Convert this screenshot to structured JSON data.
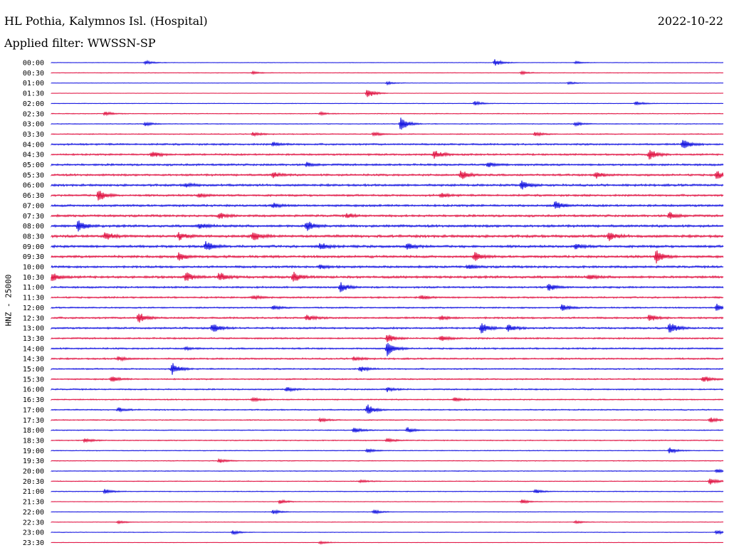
{
  "header": {
    "station": "HL Pothia, Kalymnos Isl. (Hospital)",
    "date": "2022-10-22",
    "filter": "Applied filter: WWSSN-SP"
  },
  "chart_data": {
    "type": "line",
    "title": "HL Pothia, Kalymnos Isl. (Hospital)",
    "ylabel": "HNZ - 25000",
    "colors": {
      "even_rows": "#1010e0",
      "odd_rows": "#e01040"
    },
    "rows": [
      {
        "label": "00:00",
        "noise": 0.25,
        "events": [
          [
            0.14,
            3
          ],
          [
            0.66,
            5
          ],
          [
            0.78,
            2
          ]
        ]
      },
      {
        "label": "00:30",
        "noise": 0.3,
        "events": [
          [
            0.3,
            2
          ],
          [
            0.7,
            2
          ]
        ]
      },
      {
        "label": "01:00",
        "noise": 0.2,
        "events": [
          [
            0.5,
            2
          ],
          [
            0.77,
            2
          ]
        ]
      },
      {
        "label": "01:30",
        "noise": 0.15,
        "events": [
          [
            0.47,
            8
          ]
        ]
      },
      {
        "label": "02:00",
        "noise": 0.3,
        "events": [
          [
            0.63,
            3
          ],
          [
            0.87,
            3
          ]
        ]
      },
      {
        "label": "02:30",
        "noise": 0.4,
        "events": [
          [
            0.08,
            3
          ],
          [
            0.4,
            2
          ]
        ]
      },
      {
        "label": "03:00",
        "noise": 0.4,
        "events": [
          [
            0.14,
            3
          ],
          [
            0.52,
            10
          ],
          [
            0.78,
            3
          ]
        ]
      },
      {
        "label": "03:30",
        "noise": 0.5,
        "events": [
          [
            0.3,
            3
          ],
          [
            0.48,
            3
          ],
          [
            0.72,
            3
          ]
        ]
      },
      {
        "label": "04:00",
        "noise": 0.9,
        "events": [
          [
            0.33,
            3
          ],
          [
            0.94,
            7
          ]
        ]
      },
      {
        "label": "04:30",
        "noise": 0.9,
        "events": [
          [
            0.15,
            5
          ],
          [
            0.57,
            6
          ],
          [
            0.89,
            7
          ]
        ]
      },
      {
        "label": "05:00",
        "noise": 1.0,
        "events": [
          [
            0.38,
            3
          ],
          [
            0.65,
            3
          ]
        ]
      },
      {
        "label": "05:30",
        "noise": 1.0,
        "events": [
          [
            0.33,
            4
          ],
          [
            0.61,
            7
          ],
          [
            0.81,
            5
          ],
          [
            0.99,
            6
          ]
        ]
      },
      {
        "label": "06:00",
        "noise": 1.1,
        "events": [
          [
            0.7,
            6
          ],
          [
            0.2,
            3
          ]
        ]
      },
      {
        "label": "06:30",
        "noise": 1.0,
        "events": [
          [
            0.07,
            8
          ],
          [
            0.22,
            3
          ],
          [
            0.58,
            3
          ]
        ]
      },
      {
        "label": "07:00",
        "noise": 1.1,
        "events": [
          [
            0.75,
            6
          ],
          [
            0.33,
            3
          ]
        ]
      },
      {
        "label": "07:30",
        "noise": 1.1,
        "events": [
          [
            0.25,
            4
          ],
          [
            0.44,
            3
          ],
          [
            0.92,
            5
          ]
        ]
      },
      {
        "label": "08:00",
        "noise": 1.2,
        "events": [
          [
            0.04,
            8
          ],
          [
            0.22,
            4
          ],
          [
            0.38,
            8
          ]
        ]
      },
      {
        "label": "08:30",
        "noise": 1.3,
        "events": [
          [
            0.08,
            6
          ],
          [
            0.19,
            5
          ],
          [
            0.3,
            6
          ],
          [
            0.83,
            6
          ]
        ]
      },
      {
        "label": "09:00",
        "noise": 1.2,
        "events": [
          [
            0.23,
            7
          ],
          [
            0.4,
            5
          ],
          [
            0.53,
            5
          ],
          [
            0.78,
            4
          ]
        ]
      },
      {
        "label": "09:30",
        "noise": 1.2,
        "events": [
          [
            0.19,
            6
          ],
          [
            0.63,
            6
          ],
          [
            0.9,
            9
          ]
        ]
      },
      {
        "label": "10:00",
        "noise": 1.1,
        "events": [
          [
            0.4,
            3
          ],
          [
            0.62,
            3
          ]
        ]
      },
      {
        "label": "10:30",
        "noise": 1.2,
        "events": [
          [
            0.0,
            7
          ],
          [
            0.2,
            7
          ],
          [
            0.25,
            6
          ],
          [
            0.36,
            7
          ],
          [
            0.8,
            3
          ]
        ]
      },
      {
        "label": "11:00",
        "noise": 0.9,
        "events": [
          [
            0.43,
            7
          ],
          [
            0.74,
            5
          ]
        ]
      },
      {
        "label": "11:30",
        "noise": 0.8,
        "events": [
          [
            0.3,
            3
          ],
          [
            0.55,
            3
          ]
        ]
      },
      {
        "label": "12:00",
        "noise": 0.7,
        "events": [
          [
            0.33,
            3
          ],
          [
            0.76,
            5
          ],
          [
            0.99,
            5
          ]
        ]
      },
      {
        "label": "12:30",
        "noise": 0.9,
        "events": [
          [
            0.13,
            8
          ],
          [
            0.38,
            4
          ],
          [
            0.58,
            3
          ],
          [
            0.89,
            5
          ]
        ]
      },
      {
        "label": "13:00",
        "noise": 0.9,
        "events": [
          [
            0.24,
            7
          ],
          [
            0.64,
            8
          ],
          [
            0.68,
            5
          ],
          [
            0.92,
            9
          ]
        ]
      },
      {
        "label": "13:30",
        "noise": 0.8,
        "events": [
          [
            0.5,
            6
          ],
          [
            0.58,
            4
          ]
        ]
      },
      {
        "label": "14:00",
        "noise": 0.8,
        "events": [
          [
            0.5,
            10
          ],
          [
            0.2,
            2
          ]
        ]
      },
      {
        "label": "14:30",
        "noise": 0.8,
        "events": [
          [
            0.1,
            3
          ],
          [
            0.45,
            3
          ]
        ]
      },
      {
        "label": "15:00",
        "noise": 0.7,
        "events": [
          [
            0.18,
            8
          ],
          [
            0.46,
            4
          ]
        ]
      },
      {
        "label": "15:30",
        "noise": 0.7,
        "events": [
          [
            0.09,
            4
          ],
          [
            0.97,
            5
          ]
        ]
      },
      {
        "label": "16:00",
        "noise": 0.7,
        "events": [
          [
            0.35,
            3
          ],
          [
            0.5,
            3
          ]
        ]
      },
      {
        "label": "16:30",
        "noise": 0.6,
        "events": [
          [
            0.3,
            3
          ],
          [
            0.6,
            3
          ]
        ]
      },
      {
        "label": "17:00",
        "noise": 0.6,
        "events": [
          [
            0.47,
            8
          ],
          [
            0.1,
            3
          ]
        ]
      },
      {
        "label": "17:30",
        "noise": 0.5,
        "events": [
          [
            0.4,
            3
          ],
          [
            0.98,
            4
          ]
        ]
      },
      {
        "label": "18:00",
        "noise": 0.5,
        "events": [
          [
            0.45,
            4
          ],
          [
            0.53,
            4
          ]
        ]
      },
      {
        "label": "18:30",
        "noise": 0.5,
        "events": [
          [
            0.05,
            3
          ],
          [
            0.5,
            3
          ]
        ]
      },
      {
        "label": "19:00",
        "noise": 0.4,
        "events": [
          [
            0.47,
            3
          ],
          [
            0.92,
            4
          ]
        ]
      },
      {
        "label": "19:30",
        "noise": 0.4,
        "events": [
          [
            0.25,
            3
          ]
        ]
      },
      {
        "label": "20:00",
        "noise": 0.4,
        "events": [
          [
            0.99,
            3
          ]
        ]
      },
      {
        "label": "20:30",
        "noise": 0.4,
        "events": [
          [
            0.98,
            5
          ],
          [
            0.46,
            2
          ]
        ]
      },
      {
        "label": "21:00",
        "noise": 0.4,
        "events": [
          [
            0.08,
            4
          ],
          [
            0.72,
            3
          ]
        ]
      },
      {
        "label": "21:30",
        "noise": 0.3,
        "events": [
          [
            0.34,
            3
          ],
          [
            0.7,
            3
          ]
        ]
      },
      {
        "label": "22:00",
        "noise": 0.3,
        "events": [
          [
            0.33,
            3
          ],
          [
            0.48,
            3
          ]
        ]
      },
      {
        "label": "22:30",
        "noise": 0.3,
        "events": [
          [
            0.1,
            2
          ],
          [
            0.78,
            2
          ]
        ]
      },
      {
        "label": "23:00",
        "noise": 0.3,
        "events": [
          [
            0.27,
            3
          ],
          [
            0.99,
            3
          ]
        ]
      },
      {
        "label": "23:30",
        "noise": 0.25,
        "events": [
          [
            0.4,
            2
          ]
        ]
      }
    ]
  }
}
